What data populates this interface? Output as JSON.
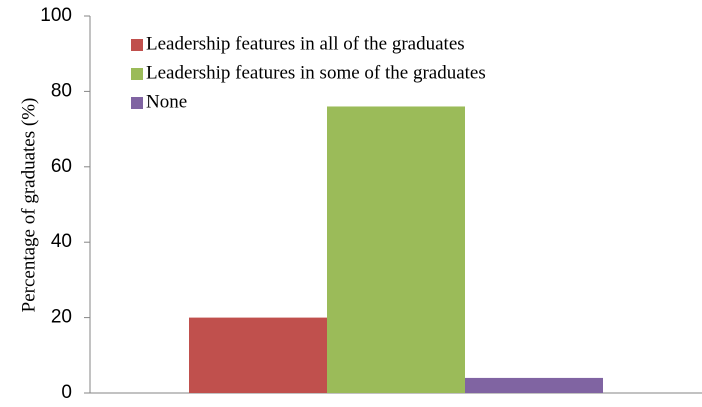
{
  "chart_data": {
    "type": "bar",
    "ylabel": "Percentage of graduates  (%)",
    "categories": [
      null
    ],
    "series": [
      {
        "name": "Leadership features in all of the graduates",
        "color": "#c0504d",
        "values": [
          20
        ]
      },
      {
        "name": "Leadership features in some of the graduates",
        "color": "#9bbb59",
        "values": [
          76
        ]
      },
      {
        "name": "None",
        "color": "#8064a2",
        "values": [
          4
        ]
      }
    ],
    "ylim": [
      0,
      100
    ],
    "yticks": [
      0,
      20,
      40,
      60,
      80,
      100
    ],
    "grid": false,
    "legend": "upper left"
  }
}
